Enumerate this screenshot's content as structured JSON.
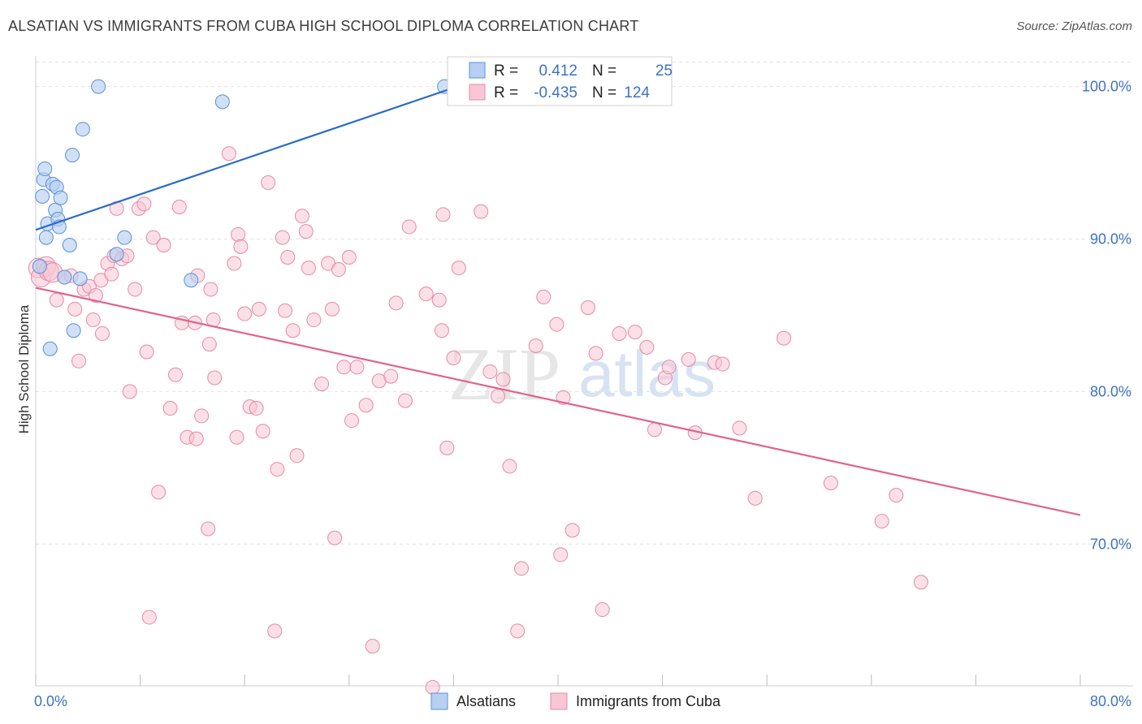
{
  "title": "ALSATIAN VS IMMIGRANTS FROM CUBA HIGH SCHOOL DIPLOMA CORRELATION CHART",
  "source": "Source: ZipAtlas.com",
  "watermark": {
    "zip": "ZIP",
    "atlas": "atlas"
  },
  "colors": {
    "alsatian_fill": "#b6d0f2",
    "alsatian_stroke": "#5b8fd6",
    "alsatian_line": "#2a6cc9",
    "cuba_fill": "#f8c6d4",
    "cuba_stroke": "#e58aa7",
    "cuba_line": "#e0628f",
    "grid": "#e2e2e2",
    "tick_label": "#3d72c4"
  },
  "legend": {
    "rows": [
      {
        "r_label": "R =",
        "r_value": "0.412",
        "n_label": "N =",
        "n_value": "25"
      },
      {
        "r_label": "R =",
        "r_value": "-0.435",
        "n_label": "N =",
        "n_value": "124"
      }
    ]
  },
  "chart_data": {
    "type": "scatter",
    "title": "ALSATIAN VS IMMIGRANTS FROM CUBA HIGH SCHOOL DIPLOMA CORRELATION CHART",
    "xlabel": "",
    "ylabel": "High School Diploma",
    "xlim": [
      0,
      80
    ],
    "ylim": [
      60.7,
      102.0
    ],
    "x_tick_labels": [
      "0.0%",
      "80.0%"
    ],
    "y_ticks": [
      70,
      80,
      90,
      100
    ],
    "y_tick_labels": [
      "70.0%",
      "80.0%",
      "90.0%",
      "100.0%"
    ],
    "legend_position": "top-center",
    "bottom_legend": [
      "Alsatians",
      "Immigrants from Cuba"
    ],
    "series": [
      {
        "name": "Alsatians",
        "R": 0.412,
        "N": 25,
        "trend": {
          "x": [
            0,
            32.3
          ],
          "y": [
            90.6,
            100.0
          ]
        },
        "points": [
          [
            0.3,
            88.2
          ],
          [
            0.5,
            92.8
          ],
          [
            0.6,
            93.9
          ],
          [
            0.7,
            94.6
          ],
          [
            0.8,
            90.1
          ],
          [
            0.9,
            91.0
          ],
          [
            1.1,
            82.8
          ],
          [
            1.3,
            93.6
          ],
          [
            1.5,
            91.9
          ],
          [
            1.6,
            93.4
          ],
          [
            1.7,
            91.3
          ],
          [
            1.8,
            90.8
          ],
          [
            1.9,
            92.7
          ],
          [
            2.2,
            87.5
          ],
          [
            2.6,
            89.6
          ],
          [
            2.8,
            95.5
          ],
          [
            2.9,
            84.0
          ],
          [
            3.4,
            87.4
          ],
          [
            3.6,
            97.2
          ],
          [
            4.8,
            100.0
          ],
          [
            6.2,
            89.0
          ],
          [
            6.8,
            90.1
          ],
          [
            11.9,
            87.3
          ],
          [
            14.3,
            99.0
          ],
          [
            31.3,
            100.0
          ]
        ]
      },
      {
        "name": "Immigrants from Cuba",
        "R": -0.435,
        "N": 124,
        "trend": {
          "x": [
            0,
            80
          ],
          "y": [
            86.8,
            71.9
          ]
        },
        "points": [
          [
            0.2,
            88.1
          ],
          [
            0.4,
            87.5
          ],
          [
            0.8,
            88.2
          ],
          [
            1.0,
            87.9
          ],
          [
            1.3,
            87.8
          ],
          [
            1.6,
            86.0
          ],
          [
            2.2,
            87.5
          ],
          [
            2.7,
            87.6
          ],
          [
            3.0,
            85.4
          ],
          [
            3.3,
            82.0
          ],
          [
            3.7,
            86.7
          ],
          [
            4.1,
            86.9
          ],
          [
            4.4,
            84.7
          ],
          [
            4.6,
            86.3
          ],
          [
            5.0,
            87.3
          ],
          [
            5.1,
            83.8
          ],
          [
            5.5,
            88.4
          ],
          [
            5.8,
            87.7
          ],
          [
            6.0,
            88.9
          ],
          [
            6.2,
            92.0
          ],
          [
            6.6,
            88.7
          ],
          [
            7.0,
            88.9
          ],
          [
            7.2,
            80.0
          ],
          [
            7.6,
            86.7
          ],
          [
            7.9,
            92.0
          ],
          [
            8.3,
            92.3
          ],
          [
            8.5,
            82.6
          ],
          [
            8.7,
            65.2
          ],
          [
            9.0,
            90.1
          ],
          [
            9.4,
            73.4
          ],
          [
            9.8,
            89.6
          ],
          [
            10.3,
            78.9
          ],
          [
            10.7,
            81.1
          ],
          [
            11.0,
            92.1
          ],
          [
            11.2,
            84.5
          ],
          [
            11.6,
            77.0
          ],
          [
            12.2,
            84.5
          ],
          [
            12.3,
            76.9
          ],
          [
            12.4,
            87.6
          ],
          [
            12.7,
            78.4
          ],
          [
            13.3,
            83.1
          ],
          [
            13.4,
            86.7
          ],
          [
            13.6,
            84.7
          ],
          [
            13.7,
            80.9
          ],
          [
            14.8,
            95.6
          ],
          [
            15.2,
            88.4
          ],
          [
            15.4,
            77.0
          ],
          [
            15.5,
            90.3
          ],
          [
            15.7,
            89.5
          ],
          [
            16.0,
            85.1
          ],
          [
            16.4,
            79.0
          ],
          [
            16.9,
            78.9
          ],
          [
            17.1,
            85.4
          ],
          [
            17.4,
            77.4
          ],
          [
            17.8,
            93.7
          ],
          [
            18.3,
            64.3
          ],
          [
            18.5,
            74.9
          ],
          [
            18.9,
            90.1
          ],
          [
            19.1,
            85.3
          ],
          [
            19.3,
            88.8
          ],
          [
            19.7,
            84.0
          ],
          [
            20.0,
            75.8
          ],
          [
            20.4,
            91.5
          ],
          [
            20.7,
            90.5
          ],
          [
            20.9,
            88.1
          ],
          [
            21.3,
            84.7
          ],
          [
            21.9,
            80.5
          ],
          [
            22.4,
            88.4
          ],
          [
            22.7,
            85.4
          ],
          [
            22.9,
            70.4
          ],
          [
            23.2,
            88.0
          ],
          [
            23.6,
            81.6
          ],
          [
            24.0,
            88.8
          ],
          [
            24.2,
            78.1
          ],
          [
            24.6,
            81.6
          ],
          [
            25.3,
            79.1
          ],
          [
            25.8,
            63.3
          ],
          [
            26.3,
            80.7
          ],
          [
            27.2,
            81.0
          ],
          [
            27.6,
            85.8
          ],
          [
            28.3,
            79.4
          ],
          [
            28.6,
            90.8
          ],
          [
            29.9,
            86.4
          ],
          [
            30.4,
            60.6
          ],
          [
            30.9,
            86.0
          ],
          [
            31.1,
            84.0
          ],
          [
            31.2,
            91.6
          ],
          [
            31.5,
            76.3
          ],
          [
            32.0,
            82.2
          ],
          [
            32.4,
            88.1
          ],
          [
            34.1,
            91.8
          ],
          [
            34.8,
            81.3
          ],
          [
            35.4,
            79.7
          ],
          [
            35.8,
            80.8
          ],
          [
            36.3,
            75.1
          ],
          [
            36.9,
            64.3
          ],
          [
            37.2,
            68.4
          ],
          [
            38.3,
            83.0
          ],
          [
            38.9,
            86.2
          ],
          [
            39.9,
            84.4
          ],
          [
            40.2,
            69.3
          ],
          [
            40.4,
            79.6
          ],
          [
            41.1,
            70.9
          ],
          [
            42.3,
            85.5
          ],
          [
            42.9,
            82.5
          ],
          [
            43.4,
            65.7
          ],
          [
            44.7,
            83.8
          ],
          [
            45.9,
            83.9
          ],
          [
            46.8,
            82.9
          ],
          [
            47.4,
            77.5
          ],
          [
            48.2,
            80.9
          ],
          [
            48.5,
            81.6
          ],
          [
            50.0,
            82.1
          ],
          [
            50.5,
            77.3
          ],
          [
            52.0,
            81.9
          ],
          [
            52.6,
            81.8
          ],
          [
            53.9,
            77.6
          ],
          [
            55.1,
            73.0
          ],
          [
            57.3,
            83.5
          ],
          [
            60.9,
            74.0
          ],
          [
            64.8,
            71.5
          ],
          [
            65.9,
            73.2
          ],
          [
            67.8,
            67.5
          ],
          [
            13.2,
            71.0
          ]
        ]
      }
    ]
  }
}
